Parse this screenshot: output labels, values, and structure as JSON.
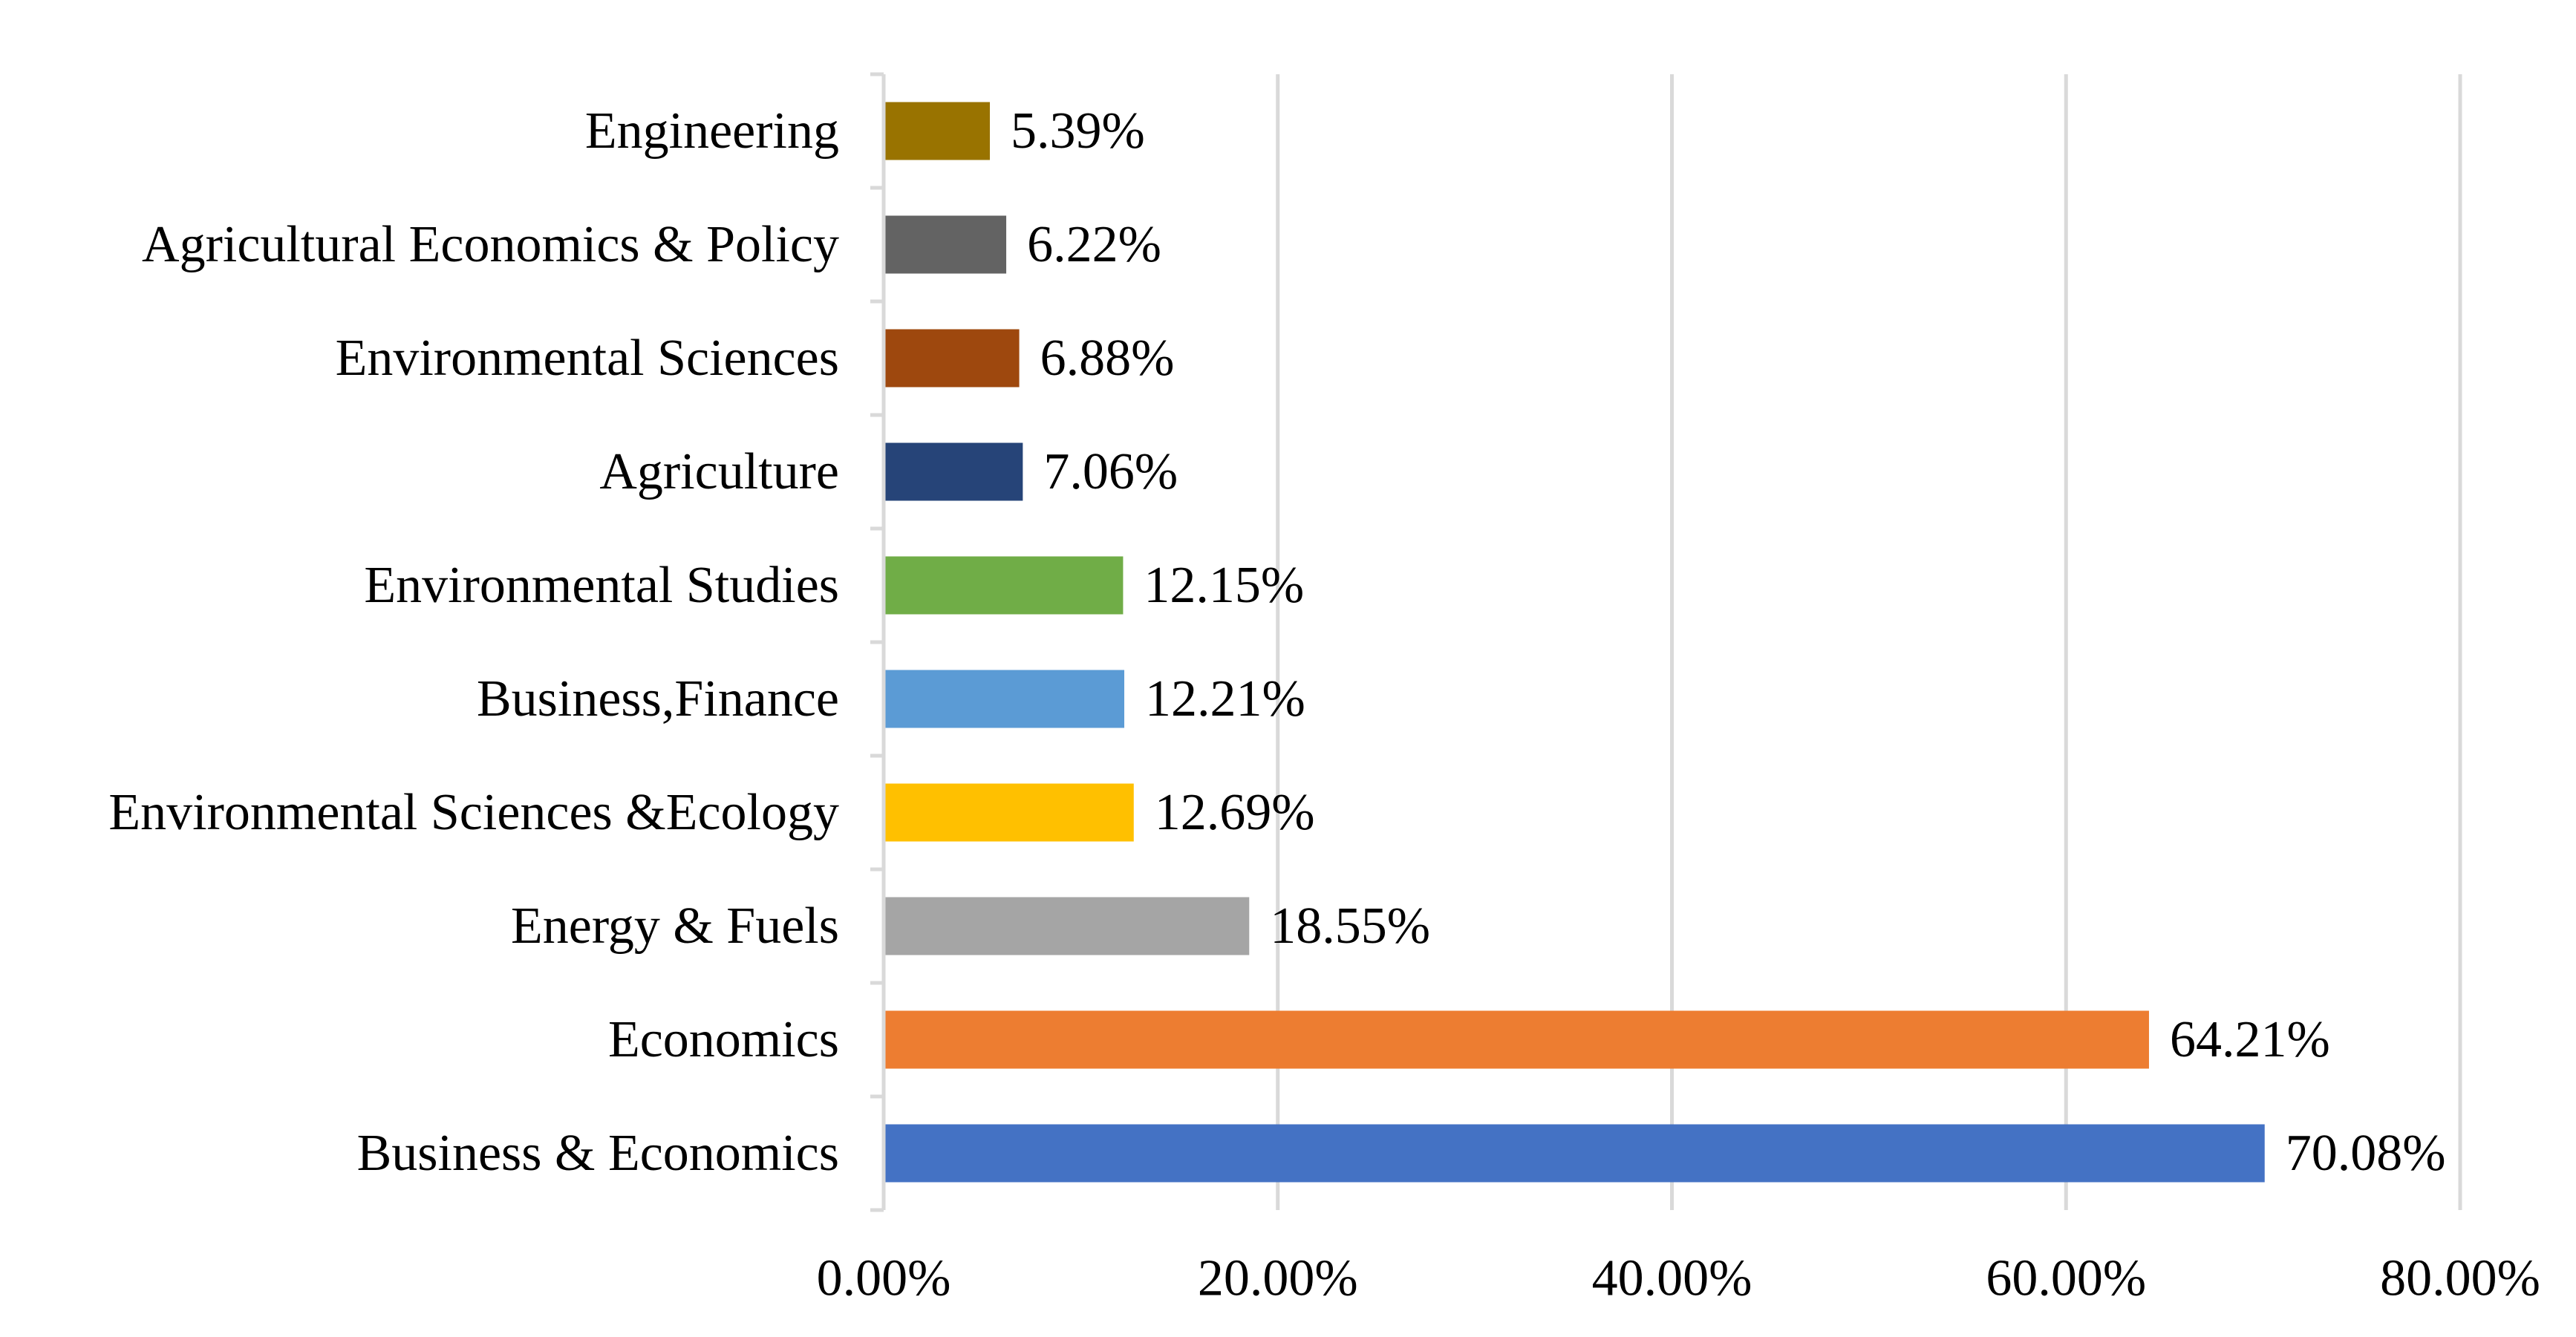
{
  "chart_data": {
    "type": "bar",
    "orientation": "horizontal",
    "title": "",
    "xlabel": "",
    "ylabel": "",
    "categories": [
      "Business & Economics",
      "Economics",
      "Energy & Fuels",
      "Environmental Sciences &Ecology",
      "Business,Finance",
      "Environmental Studies",
      "Agriculture",
      "Environmental Sciences",
      "Agricultural Economics & Policy",
      "Engineering"
    ],
    "values": [
      70.08,
      64.21,
      18.55,
      12.69,
      12.21,
      12.15,
      7.06,
      6.88,
      6.22,
      5.39
    ],
    "data_labels": [
      "70.08%",
      "64.21%",
      "18.55%",
      "12.69%",
      "12.21%",
      "12.15%",
      "7.06%",
      "6.88%",
      "6.22%",
      "5.39%"
    ],
    "colors": [
      "#4472C4",
      "#ED7D31",
      "#A5A5A5",
      "#FFC000",
      "#5B9BD5",
      "#70AD47",
      "#264478",
      "#9E480E",
      "#636363",
      "#997300"
    ],
    "xlim": [
      0,
      80
    ],
    "x_ticks": [
      0,
      20,
      40,
      60,
      80
    ],
    "x_tick_labels": [
      "0.00%",
      "20.00%",
      "40.00%",
      "60.00%",
      "80.00%"
    ],
    "grid": true,
    "legend": "none"
  }
}
